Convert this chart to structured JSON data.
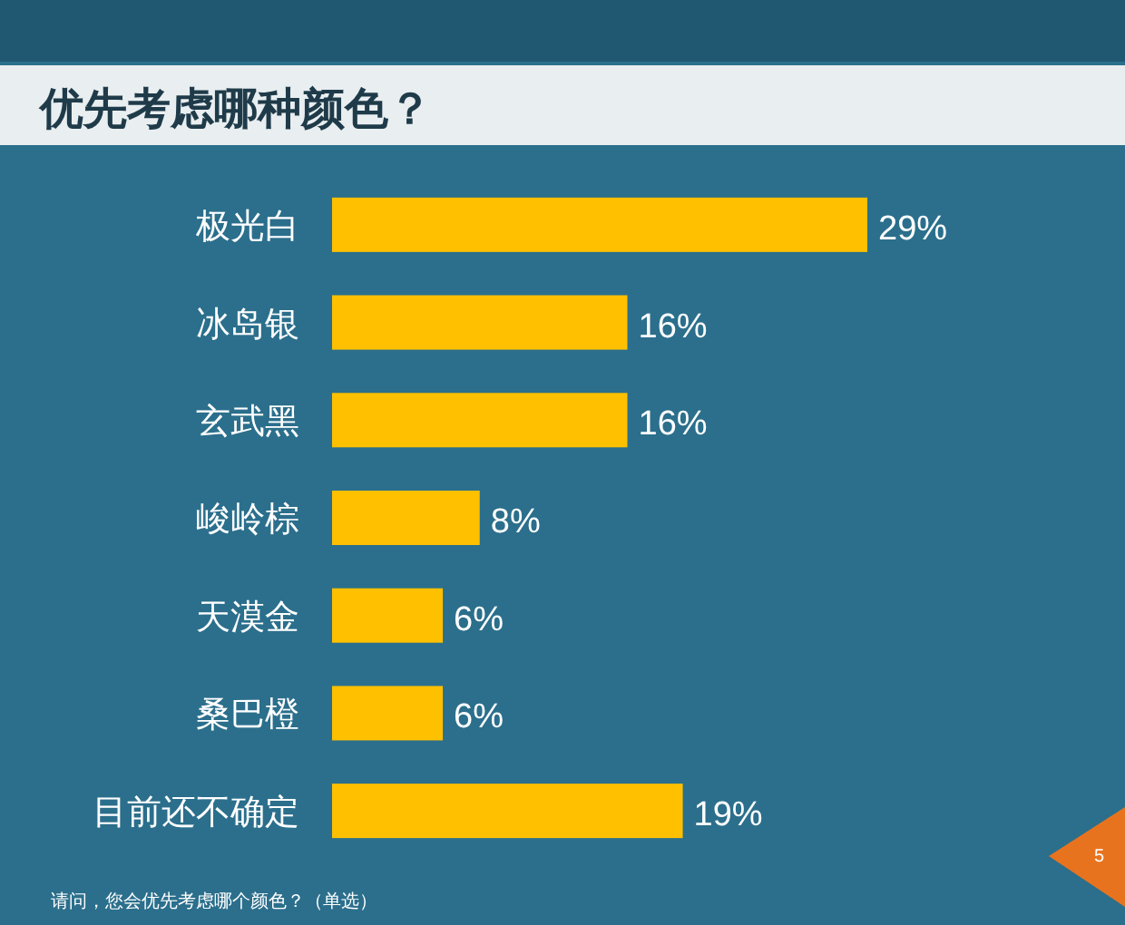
{
  "chart_data": {
    "type": "bar",
    "orientation": "horizontal",
    "title": "优先考虑哪种颜色？",
    "categories": [
      "极光白",
      "冰岛银",
      "玄武黑",
      "峻岭棕",
      "天漠金",
      "桑巴橙",
      "目前还不确定"
    ],
    "values": [
      29,
      16,
      16,
      8,
      6,
      6,
      19
    ],
    "value_labels": [
      "29%",
      "16%",
      "16%",
      "8%",
      "6%",
      "6%",
      "19%"
    ],
    "color": "#ffc000",
    "annotations": [
      "请问，您会优先考虑哪个颜色？（单选）",
      "5"
    ]
  }
}
